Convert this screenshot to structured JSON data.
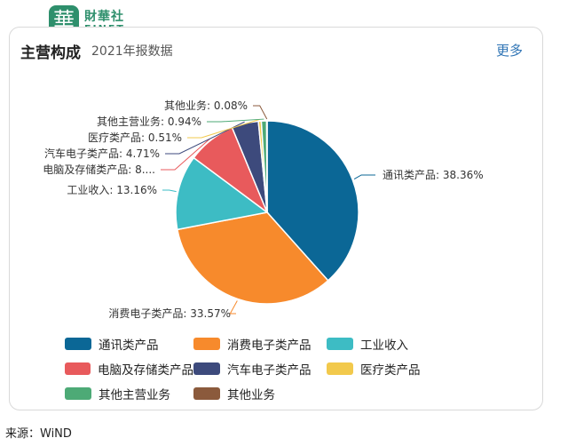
{
  "logo": {
    "glyph": "華",
    "cn": "財華社",
    "en": "FINET",
    "color": "#2e8f6c"
  },
  "header": {
    "title": "主营构成",
    "subtitle": "2021年报数据",
    "more": "更多"
  },
  "chart_data": {
    "type": "pie",
    "title": "主营构成",
    "subtitle": "2021年报数据",
    "slices": [
      {
        "name": "通讯类产品",
        "value": 38.36,
        "label": "通讯类产品: 38.36%",
        "color": "#0b6796"
      },
      {
        "name": "消费电子类产品",
        "value": 33.57,
        "label": "消费电子类产品: 33.57%",
        "color": "#f78a2c"
      },
      {
        "name": "工业收入",
        "value": 13.16,
        "label": "工业收入: 13.16%",
        "color": "#3dbcc4"
      },
      {
        "name": "电脑及存储类产品",
        "value": 8.58,
        "label": "电脑及存储类产品: 8....",
        "color": "#e85a5c"
      },
      {
        "name": "汽车电子类产品",
        "value": 4.71,
        "label": "汽车电子类产品: 4.71%",
        "color": "#3d4a7c"
      },
      {
        "name": "医疗类产品",
        "value": 0.51,
        "label": "医疗类产品: 0.51%",
        "color": "#f2c94c"
      },
      {
        "name": "其他主营业务",
        "value": 0.94,
        "label": "其他主营业务: 0.94%",
        "color": "#4daa76"
      },
      {
        "name": "其他业务",
        "value": 0.08,
        "label": "其他业务: 0.08%",
        "color": "#8b5a3c"
      }
    ],
    "legend_position": "bottom"
  },
  "source": "来源：WiND"
}
